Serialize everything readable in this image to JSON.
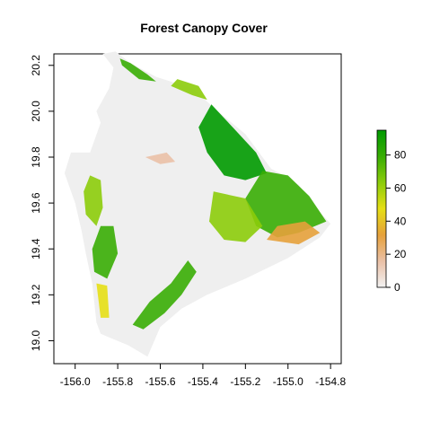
{
  "chart_data": {
    "type": "heatmap",
    "title": "Forest Canopy Cover",
    "xlabel": "",
    "ylabel": "",
    "xlim": [
      -156.1,
      -154.75
    ],
    "ylim": [
      18.9,
      20.25
    ],
    "x_ticks": [
      -156.0,
      -155.8,
      -155.6,
      -155.4,
      -155.2,
      -155.0,
      -154.8
    ],
    "x_tick_labels": [
      "-156.0",
      "-155.8",
      "-155.6",
      "-155.4",
      "-155.2",
      "-155.0",
      "-154.8"
    ],
    "y_ticks": [
      19.0,
      19.2,
      19.4,
      19.6,
      19.8,
      20.0,
      20.2
    ],
    "y_tick_labels": [
      "19.0",
      "19.2",
      "19.4",
      "19.6",
      "19.8",
      "20.0",
      "20.2"
    ],
    "legend": {
      "position": "right",
      "min": 0,
      "max": 95,
      "ticks": [
        0,
        20,
        40,
        60,
        80
      ],
      "tick_labels": [
        "0",
        "20",
        "40",
        "60",
        "80"
      ]
    },
    "colors": {
      "no_data_land": "#efefef",
      "scale": [
        "#f2f2f2",
        "#eac0a6",
        "#e6a13b",
        "#e6df15",
        "#8ccc0a",
        "#38ad04",
        "#009a00"
      ]
    },
    "island_outline": [
      [
        -155.87,
        20.25
      ],
      [
        -155.81,
        20.26
      ],
      [
        -155.74,
        20.21
      ],
      [
        -155.62,
        20.15
      ],
      [
        -155.45,
        20.1
      ],
      [
        -155.33,
        20.0
      ],
      [
        -155.2,
        19.9
      ],
      [
        -155.08,
        19.75
      ],
      [
        -155.02,
        19.72
      ],
      [
        -154.95,
        19.68
      ],
      [
        -154.85,
        19.56
      ],
      [
        -154.8,
        19.51
      ],
      [
        -154.85,
        19.45
      ],
      [
        -155.0,
        19.36
      ],
      [
        -155.2,
        19.27
      ],
      [
        -155.38,
        19.2
      ],
      [
        -155.5,
        19.14
      ],
      [
        -155.6,
        19.06
      ],
      [
        -155.66,
        18.93
      ],
      [
        -155.75,
        18.98
      ],
      [
        -155.88,
        19.03
      ],
      [
        -155.9,
        19.08
      ],
      [
        -155.92,
        19.25
      ],
      [
        -155.95,
        19.38
      ],
      [
        -155.97,
        19.48
      ],
      [
        -156.0,
        19.6
      ],
      [
        -156.05,
        19.73
      ],
      [
        -156.02,
        19.82
      ],
      [
        -155.93,
        19.82
      ],
      [
        -155.88,
        19.95
      ],
      [
        -155.9,
        20.0
      ],
      [
        -155.84,
        20.1
      ],
      [
        -155.82,
        20.19
      ]
    ],
    "canopy_patches": [
      {
        "value": 85,
        "points": [
          [
            -155.79,
            20.23
          ],
          [
            -155.74,
            20.21
          ],
          [
            -155.66,
            20.16
          ],
          [
            -155.62,
            20.13
          ],
          [
            -155.7,
            20.14
          ],
          [
            -155.78,
            20.2
          ]
        ]
      },
      {
        "value": 60,
        "points": [
          [
            -155.52,
            20.14
          ],
          [
            -155.42,
            20.11
          ],
          [
            -155.38,
            20.05
          ],
          [
            -155.45,
            20.07
          ],
          [
            -155.55,
            20.11
          ]
        ]
      },
      {
        "value": 90,
        "points": [
          [
            -155.36,
            20.03
          ],
          [
            -155.25,
            19.92
          ],
          [
            -155.15,
            19.82
          ],
          [
            -155.1,
            19.73
          ],
          [
            -155.2,
            19.7
          ],
          [
            -155.3,
            19.72
          ],
          [
            -155.38,
            19.82
          ],
          [
            -155.42,
            19.93
          ]
        ]
      },
      {
        "value": 80,
        "points": [
          [
            -155.12,
            19.74
          ],
          [
            -155.0,
            19.72
          ],
          [
            -154.9,
            19.63
          ],
          [
            -154.82,
            19.52
          ],
          [
            -154.95,
            19.47
          ],
          [
            -155.05,
            19.45
          ],
          [
            -155.15,
            19.5
          ],
          [
            -155.2,
            19.62
          ]
        ]
      },
      {
        "value": 65,
        "points": [
          [
            -155.35,
            19.65
          ],
          [
            -155.2,
            19.62
          ],
          [
            -155.12,
            19.5
          ],
          [
            -155.2,
            19.43
          ],
          [
            -155.3,
            19.44
          ],
          [
            -155.37,
            19.52
          ]
        ]
      },
      {
        "value": 25,
        "points": [
          [
            -155.1,
            19.44
          ],
          [
            -154.95,
            19.42
          ],
          [
            -154.85,
            19.47
          ],
          [
            -154.92,
            19.52
          ],
          [
            -155.05,
            19.5
          ]
        ]
      },
      {
        "value": 75,
        "points": [
          [
            -155.47,
            19.35
          ],
          [
            -155.55,
            19.25
          ],
          [
            -155.65,
            19.17
          ],
          [
            -155.73,
            19.07
          ],
          [
            -155.68,
            19.05
          ],
          [
            -155.58,
            19.12
          ],
          [
            -155.5,
            19.2
          ],
          [
            -155.43,
            19.3
          ]
        ]
      },
      {
        "value": 85,
        "points": [
          [
            -155.88,
            19.5
          ],
          [
            -155.82,
            19.5
          ],
          [
            -155.8,
            19.38
          ],
          [
            -155.85,
            19.27
          ],
          [
            -155.91,
            19.3
          ],
          [
            -155.92,
            19.4
          ]
        ]
      },
      {
        "value": 60,
        "points": [
          [
            -155.93,
            19.72
          ],
          [
            -155.88,
            19.7
          ],
          [
            -155.87,
            19.58
          ],
          [
            -155.9,
            19.5
          ],
          [
            -155.95,
            19.55
          ],
          [
            -155.96,
            19.65
          ]
        ]
      },
      {
        "value": 55,
        "points": [
          [
            -155.9,
            19.25
          ],
          [
            -155.85,
            19.24
          ],
          [
            -155.84,
            19.1
          ],
          [
            -155.88,
            19.1
          ]
        ]
      },
      {
        "value": 20,
        "points": [
          [
            -155.67,
            19.8
          ],
          [
            -155.57,
            19.82
          ],
          [
            -155.53,
            19.78
          ],
          [
            -155.6,
            19.77
          ]
        ]
      }
    ]
  }
}
